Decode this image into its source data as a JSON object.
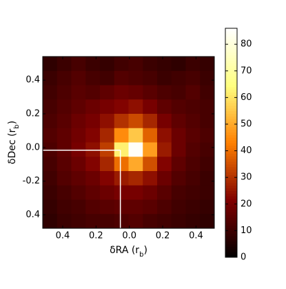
{
  "chart_data": {
    "type": "heatmap",
    "xlabel": {
      "main": "δRA (r",
      "sub": "b",
      "end": ")"
    },
    "ylabel": {
      "main": "δDec (r",
      "sub": "b",
      "end": ")"
    },
    "xlim": [
      -0.52,
      0.51
    ],
    "ylim": [
      -0.48,
      0.54
    ],
    "xticks": [
      {
        "value": -0.4,
        "label": "0.4"
      },
      {
        "value": -0.2,
        "label": "0.2"
      },
      {
        "value": 0,
        "label": "0.0"
      },
      0.2,
      0.4
    ],
    "yticks": [
      {
        "value": -0.4,
        "label": "0.4"
      },
      -0.2,
      {
        "value": 0,
        "label": "0.0"
      },
      0.2,
      0.4
    ],
    "colormap": "afmhot",
    "clim": [
      0,
      86
    ],
    "cticks": [
      0,
      10,
      20,
      30,
      40,
      50,
      60,
      70,
      80
    ],
    "crosshair": {
      "x": -0.054,
      "y": -0.016,
      "color": "#ffffff"
    },
    "z": [
      [
        8,
        10,
        12,
        10,
        9,
        11,
        12,
        10,
        9,
        8,
        10,
        9
      ],
      [
        10,
        12,
        14,
        12,
        11,
        14,
        13,
        12,
        10,
        11,
        12,
        10
      ],
      [
        11,
        13,
        15,
        14,
        16,
        18,
        17,
        15,
        13,
        12,
        14,
        11
      ],
      [
        12,
        14,
        16,
        18,
        20,
        22,
        24,
        20,
        16,
        14,
        13,
        12
      ],
      [
        13,
        15,
        18,
        20,
        24,
        30,
        34,
        28,
        20,
        16,
        14,
        12
      ],
      [
        14,
        16,
        19,
        22,
        28,
        45,
        55,
        38,
        24,
        18,
        15,
        13
      ],
      [
        13,
        16,
        20,
        24,
        32,
        62,
        85,
        48,
        26,
        18,
        14,
        12
      ],
      [
        12,
        15,
        18,
        22,
        28,
        40,
        50,
        35,
        22,
        16,
        13,
        11
      ],
      [
        11,
        14,
        16,
        18,
        22,
        26,
        28,
        24,
        18,
        14,
        12,
        10
      ],
      [
        10,
        12,
        14,
        16,
        18,
        20,
        20,
        18,
        15,
        12,
        11,
        10
      ],
      [
        9,
        11,
        12,
        14,
        15,
        16,
        16,
        15,
        13,
        11,
        10,
        9
      ],
      [
        8,
        10,
        11,
        12,
        12,
        13,
        14,
        12,
        11,
        10,
        9,
        8
      ]
    ]
  }
}
